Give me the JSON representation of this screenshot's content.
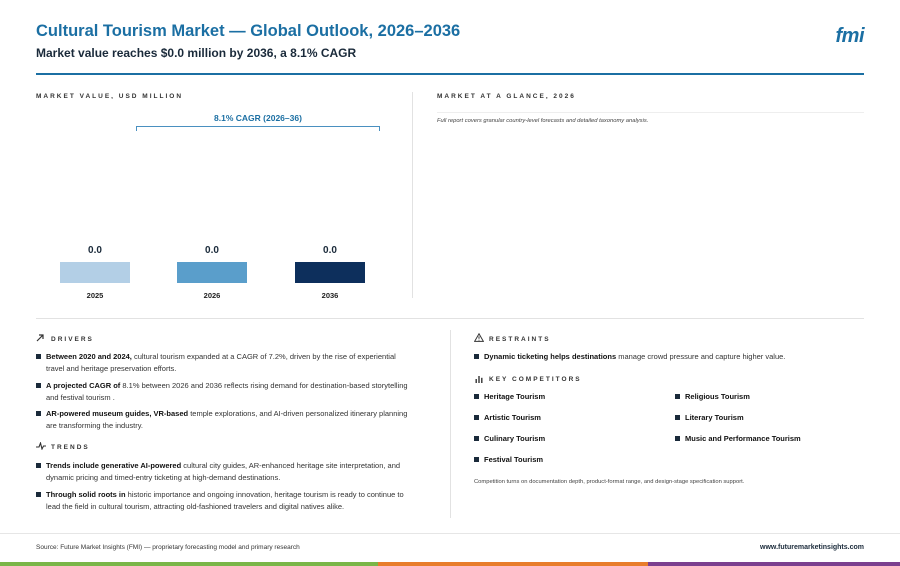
{
  "header": {
    "title": "Cultural Tourism Market — Global Outlook, 2026–2036",
    "subtitle": "Market value reaches $0.0 million by 2036, a 8.1% CAGR",
    "logo": "fmi"
  },
  "market_value": {
    "label": "MARKET VALUE, USD MILLION",
    "cagr_label": "8.1% CAGR (2026–36)"
  },
  "chart_data": {
    "type": "bar",
    "categories": [
      "2025",
      "2026",
      "2036"
    ],
    "values": [
      0.0,
      0.0,
      0.0
    ],
    "value_labels": [
      "0.0",
      "0.0",
      "0.0"
    ],
    "colors": [
      "#b3cfe6",
      "#5a9ecb",
      "#0d2f5c"
    ],
    "title": "",
    "xlabel": "",
    "ylabel": ""
  },
  "glance": {
    "label": "MARKET AT A GLANCE, 2026",
    "note": "Full report covers granular country-level forecasts and detailed taxonomy analysis."
  },
  "drivers": {
    "label": "DRIVERS",
    "icon": "arrow-up-right-icon",
    "items": [
      {
        "bold": "Between 2020 and 2024,",
        "line1": " cultural tourism expanded at a CAGR of 7.2%, driven by the rise of experiential",
        "line2": "travel and heritage preservation efforts."
      },
      {
        "bold": "A projected CAGR of",
        "line1": " 8.1% between 2026 and 2036 reflects rising demand for destination-based storytelling",
        "line2": "and festival tourism ."
      },
      {
        "bold": "AR-powered museum guides, VR-based",
        "line1": " temple explorations, and AI-driven personalized itinerary planning",
        "line2": "are transforming the industry."
      }
    ]
  },
  "trends": {
    "label": "TRENDS",
    "icon": "trend-line-icon",
    "items": [
      {
        "bold": "Trends include generative AI-powered",
        "line1": " cultural city guides, AR-enhanced heritage site interpretation, and",
        "line2": "dynamic pricing and timed-entry ticketing at high-demand destinations."
      },
      {
        "bold": "Through solid roots in",
        "line1": " historic importance and ongoing innovation, heritage tourism is ready to continue to",
        "line2": "lead the field in cultural tourism, attracting old-fashioned travelers and digital natives alike."
      }
    ]
  },
  "restraints": {
    "label": "RESTRAINTS",
    "icon": "warning-triangle-icon",
    "items": [
      {
        "bold": "Dynamic ticketing helps destinations",
        "line1": " manage crowd pressure and capture higher value."
      }
    ]
  },
  "competitors": {
    "label": "KEY COMPETITORS",
    "icon": "bar-chart-icon",
    "left": [
      "Heritage Tourism",
      "Artistic Tourism",
      "Culinary Tourism",
      "Festival Tourism"
    ],
    "right": [
      "Religious Tourism",
      "Literary Tourism",
      "Music and Performance Tourism"
    ],
    "note": "Competition turns on documentation depth, product-format range, and design-stage specification support."
  },
  "footer": {
    "source": "Source: Future Market Insights (FMI) — proprietary forecasting model and primary research",
    "url": "www.futuremarketinsights.com",
    "strip_colors": [
      "#7ab648",
      "#e87d2b",
      "#7b3f8f"
    ]
  }
}
